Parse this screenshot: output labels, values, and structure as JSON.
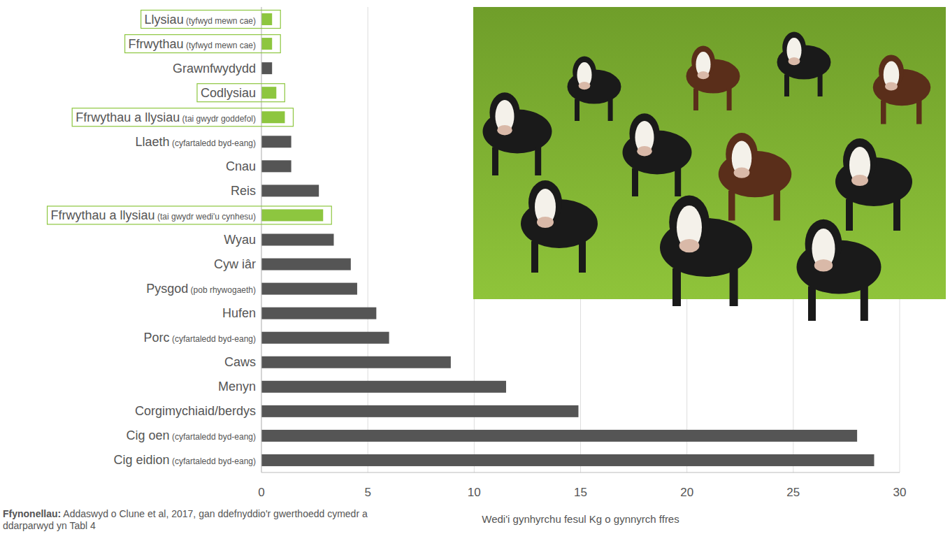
{
  "chart_data": {
    "type": "bar",
    "orientation": "horizontal",
    "categories": [
      "Llysiau (tyfwyd mewn cae)",
      "Ffrwythau (tyfwyd mewn cae)",
      "Grawnfwydydd",
      "Codlysiau",
      "Ffrwythau a llysiau (tai gwydr goddefol)",
      "Llaeth (cyfartaledd byd-eang)",
      "Cnau",
      "Reis",
      "Ffrwythau a llysiau (tai gwydr wedi'u cynhesu)",
      "Wyau",
      "Cyw iâr",
      "Pysgod (pob rhywogaeth)",
      "Hufen",
      "Porc (cyfartaledd byd-eang)",
      "Caws",
      "Menyn",
      "Corgimychiaid/berdys",
      "Cig oen (cyfartaledd byd-eang)",
      "Cig eidion (cyfartaledd byd-eang)"
    ],
    "values": [
      0.5,
      0.5,
      0.5,
      0.7,
      1.1,
      1.4,
      1.4,
      2.7,
      2.9,
      3.4,
      4.2,
      4.5,
      5.4,
      6.0,
      8.9,
      11.5,
      14.9,
      28.0,
      28.8
    ],
    "colors": [
      "#8dc63f",
      "#8dc63f",
      "#555555",
      "#8dc63f",
      "#8dc63f",
      "#555555",
      "#555555",
      "#555555",
      "#8dc63f",
      "#555555",
      "#555555",
      "#555555",
      "#555555",
      "#555555",
      "#555555",
      "#555555",
      "#555555",
      "#555555",
      "#555555"
    ],
    "xlim": [
      0,
      30
    ],
    "xticks": [
      0,
      5,
      10,
      15,
      20,
      25,
      30
    ],
    "grid": true,
    "xlabel": "Wedi'i gynhyrchu fesul Kg o gynnyrch ffres",
    "source": "Ffynonellau: Addaswyd o Clune et al, 2017, gan ddefnyddio'r gwerthoedd cymedr a ddarparwyd yn Tabl 4"
  }
}
